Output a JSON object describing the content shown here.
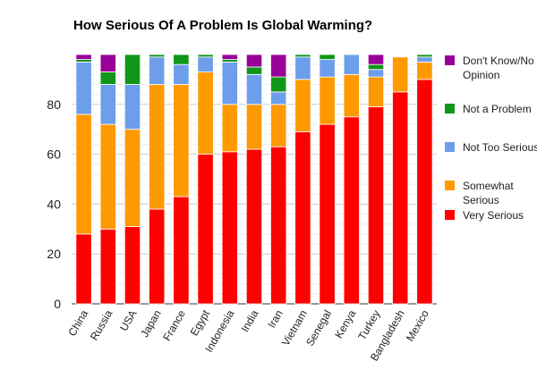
{
  "chart_data": {
    "type": "bar",
    "stacked": true,
    "title": "How Serious Of A Problem Is Global Warming?",
    "xlabel": "",
    "ylabel": "",
    "ylim": [
      0,
      100
    ],
    "yticks": [
      0,
      20,
      40,
      60,
      80
    ],
    "grid": true,
    "legend_position": "right",
    "categories": [
      "China",
      "Russia",
      "USA",
      "Japan",
      "France",
      "Egypt",
      "Indonesia",
      "India",
      "Iran",
      "Vietnam",
      "Senegal",
      "Kenya",
      "Turkey",
      "Bangladesh",
      "Mexico"
    ],
    "series": [
      {
        "name": "Very Serious",
        "color": "#ff0000",
        "values": [
          28,
          30,
          31,
          38,
          43,
          60,
          61,
          62,
          63,
          69,
          72,
          75,
          79,
          85,
          90
        ]
      },
      {
        "name": "Somewhat Serious",
        "color": "#ff9900",
        "values": [
          48,
          42,
          39,
          50,
          45,
          33,
          19,
          18,
          17,
          21,
          19,
          17,
          12,
          14,
          7
        ]
      },
      {
        "name": "Not Too Serious",
        "color": "#6d9eeb",
        "values": [
          21,
          16,
          18,
          11,
          8,
          6,
          17,
          12,
          5,
          9,
          7,
          8,
          3,
          0,
          2
        ]
      },
      {
        "name": "Not a Problem",
        "color": "#109618",
        "values": [
          1,
          5,
          12,
          1,
          4,
          1,
          1,
          3,
          6,
          1,
          2,
          0,
          2,
          0,
          1
        ]
      },
      {
        "name": "Don't Know/No Opinion",
        "color": "#990099",
        "values": [
          2,
          7,
          0,
          0,
          0,
          0,
          2,
          5,
          9,
          0,
          0,
          0,
          4,
          0,
          0
        ]
      }
    ]
  }
}
